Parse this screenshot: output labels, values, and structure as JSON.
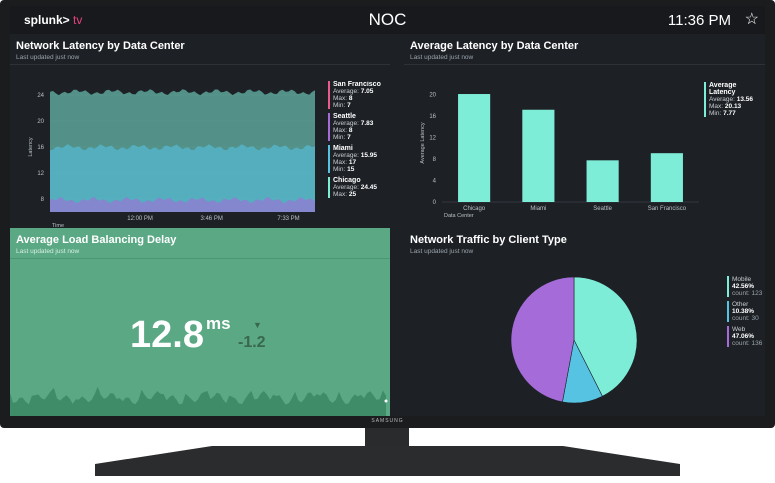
{
  "topbar": {
    "logo_main": "splunk>",
    "logo_tv": "tv",
    "title": "NOC",
    "time": "11:36 PM",
    "star_icon": "☆"
  },
  "tv_brand": "SAMSUNG",
  "panels": {
    "latency_dc": {
      "title": "Network Latency by Data Center",
      "subtitle": "Last updated just now",
      "legend": [
        {
          "name": "San Francisco",
          "avg_label": "Average:",
          "avg": "7.05",
          "max_label": "Max:",
          "max": "8",
          "min_label": "Min:",
          "min": "7",
          "color": "#e85b8a"
        },
        {
          "name": "Seattle",
          "avg_label": "Average:",
          "avg": "7.83",
          "max_label": "Max:",
          "max": "8",
          "min_label": "Min:",
          "min": "7",
          "color": "#a56bd9"
        },
        {
          "name": "Miami",
          "avg_label": "Average:",
          "avg": "15.95",
          "max_label": "Max:",
          "max": "17",
          "min_label": "Min:",
          "min": "15",
          "color": "#56c3e3"
        },
        {
          "name": "Chicago",
          "avg_label": "Average:",
          "avg": "24.45",
          "max_label": "Max:",
          "max": "25",
          "min_label": "",
          "min": "",
          "color": "#7eedd8"
        }
      ]
    },
    "avg_latency": {
      "title": "Average Latency by Data Center",
      "subtitle": "Last updated just now",
      "legend": [
        {
          "name": "Average Latency",
          "avg_label": "Average:",
          "avg": "13.56",
          "max_label": "Max:",
          "max": "20.13",
          "min_label": "Min:",
          "min": "7.77",
          "color": "#7eedd8"
        }
      ]
    },
    "load_balancing": {
      "title": "Average Load Balancing Delay",
      "subtitle": "Last updated just now",
      "value": "12.8",
      "unit": "ms",
      "delta": "-1.2",
      "delta_icon": "▼"
    },
    "traffic": {
      "title": "Network Traffic by Client Type",
      "subtitle": "Last updated just now",
      "legend": [
        {
          "name": "Mobile",
          "pct": "42.56%",
          "count": "count: 123",
          "color": "#7eedd8"
        },
        {
          "name": "Other",
          "pct": "10.38%",
          "count": "count: 30",
          "color": "#56c3e3"
        },
        {
          "name": "Web",
          "pct": "47.06%",
          "count": "count: 136",
          "color": "#a56bd9"
        }
      ]
    }
  },
  "chart_data": [
    {
      "type": "area",
      "x_ticks": [
        "12:00 PM",
        "3:46 PM",
        "7:33 PM"
      ],
      "xlabel": "Time",
      "ylabel": "Latency",
      "y_ticks": [
        "24",
        "20",
        "16",
        "12",
        "8"
      ],
      "ylim": [
        6,
        26
      ],
      "series": [
        {
          "name": "Chicago",
          "level": 24.45,
          "color": "#7eedd8"
        },
        {
          "name": "Miami",
          "level": 15.95,
          "color": "#56c3e3"
        },
        {
          "name": "Seattle",
          "level": 7.83,
          "color": "#a56bd9"
        }
      ],
      "legend": "right",
      "grid": true
    },
    {
      "type": "bar",
      "categories": [
        "Chicago",
        "Miami",
        "Seattle",
        "San Francisco"
      ],
      "values": [
        20.13,
        17.2,
        7.77,
        9.1
      ],
      "xlabel": "Data Center",
      "ylabel": "Average Latency",
      "y_ticks": [
        "20",
        "16",
        "12",
        "8",
        "4",
        "0"
      ],
      "ylim": [
        0,
        22
      ],
      "color": "#7eedd8",
      "legend": "right"
    },
    {
      "type": "pie",
      "categories": [
        "Mobile",
        "Other",
        "Web"
      ],
      "values": [
        42.56,
        10.38,
        47.06
      ],
      "colors": [
        "#7eedd8",
        "#56c3e3",
        "#a56bd9"
      ],
      "legend": "right"
    }
  ]
}
